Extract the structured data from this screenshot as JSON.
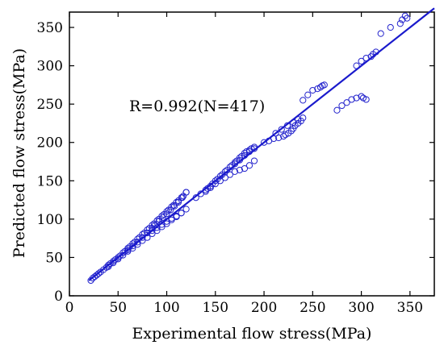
{
  "chart_data": {
    "type": "scatter",
    "xlabel": "Experimental flow stress(MPa)",
    "ylabel": "Predicted flow stress(MPa)",
    "xlim": [
      0,
      375
    ],
    "ylim": [
      0,
      370
    ],
    "x_ticks": [
      0,
      50,
      100,
      150,
      200,
      250,
      300,
      350
    ],
    "y_ticks": [
      0,
      50,
      100,
      150,
      200,
      250,
      300,
      350
    ],
    "grid": false,
    "legend": "none",
    "annotation": "R=0.992(N=417)",
    "colors": {
      "marker": "#2222cc",
      "fit_line": "#1a1acc",
      "axes": "#000000"
    },
    "fit_line": {
      "x": [
        20,
        375
      ],
      "y": [
        20,
        375
      ]
    },
    "series": [
      {
        "marker": "open-circle",
        "x": [
          22,
          24,
          26,
          28,
          30,
          32,
          35,
          38,
          40,
          42,
          45,
          47,
          50,
          52,
          55,
          57,
          60,
          62,
          65,
          67,
          70,
          72,
          75,
          77,
          80,
          82,
          85,
          87,
          90,
          92,
          95,
          97,
          100,
          102,
          105,
          107,
          110,
          112,
          115,
          117,
          120,
          40,
          45,
          50,
          55,
          60,
          65,
          70,
          75,
          80,
          85,
          90,
          95,
          100,
          105,
          110,
          115,
          120,
          60,
          65,
          70,
          75,
          80,
          85,
          88,
          92,
          96,
          100,
          104,
          108,
          112,
          116,
          120,
          85,
          90,
          95,
          100,
          105,
          110,
          115,
          130,
          135,
          140,
          142,
          145,
          147,
          150,
          152,
          155,
          157,
          160,
          162,
          165,
          167,
          170,
          172,
          175,
          177,
          180,
          182,
          185,
          187,
          190,
          140,
          145,
          150,
          155,
          160,
          165,
          170,
          175,
          180,
          185,
          190,
          170,
          175,
          180,
          185,
          190,
          200,
          205,
          210,
          215,
          220,
          222,
          225,
          228,
          230,
          232,
          235,
          238,
          240,
          212,
          218,
          224,
          230,
          235,
          240,
          245,
          250,
          255,
          258,
          260,
          262,
          275,
          280,
          285,
          290,
          295,
          300,
          302,
          305,
          295,
          300,
          305,
          310,
          312,
          315,
          320,
          330,
          340,
          342,
          345,
          347
        ],
        "y": [
          20,
          23,
          25,
          27,
          29,
          31,
          34,
          37,
          40,
          42,
          45,
          47,
          50,
          52,
          56,
          58,
          62,
          64,
          68,
          70,
          74,
          76,
          80,
          82,
          86,
          88,
          92,
          94,
          98,
          100,
          104,
          106,
          110,
          112,
          116,
          118,
          122,
          124,
          128,
          130,
          135,
          38,
          43,
          48,
          53,
          58,
          62,
          67,
          72,
          76,
          81,
          85,
          90,
          94,
          99,
          103,
          108,
          113,
          60,
          65,
          70,
          76,
          82,
          88,
          92,
          97,
          102,
          107,
          112,
          117,
          122,
          128,
          135,
          85,
          89,
          93,
          97,
          101,
          104,
          108,
          128,
          133,
          138,
          140,
          143,
          146,
          150,
          152,
          156,
          158,
          162,
          164,
          168,
          170,
          174,
          176,
          180,
          182,
          186,
          188,
          190,
          192,
          194,
          136,
          141,
          146,
          150,
          154,
          158,
          162,
          164,
          166,
          170,
          176,
          172,
          177,
          183,
          188,
          192,
          200,
          202,
          205,
          206,
          208,
          210,
          212,
          215,
          218,
          222,
          225,
          228,
          232,
          212,
          217,
          222,
          226,
          230,
          255,
          262,
          268,
          270,
          272,
          274,
          275,
          242,
          248,
          252,
          256,
          258,
          260,
          258,
          256,
          300,
          306,
          310,
          312,
          315,
          318,
          342,
          350,
          355,
          360,
          365,
          362
        ]
      }
    ]
  }
}
